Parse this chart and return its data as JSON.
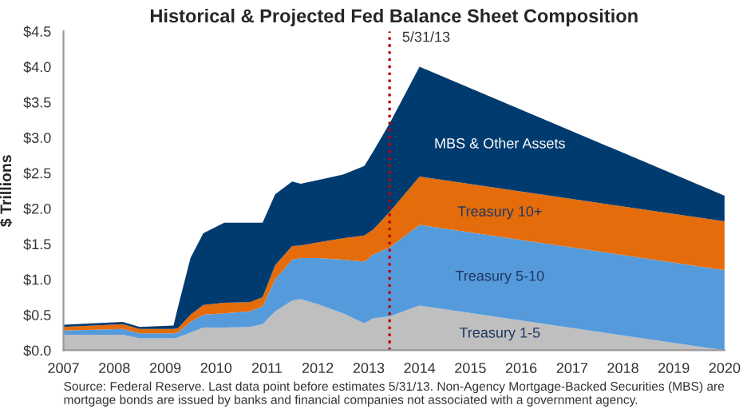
{
  "chart_data": {
    "type": "area",
    "stacked": true,
    "title": "Historical & Projected Fed Balance Sheet Composition",
    "ylabel": "$ Trillions",
    "x": [
      "2007-01",
      "2008-03",
      "2008-07",
      "2009-03",
      "2009-04",
      "2009-07",
      "2009-10",
      "2010-03",
      "2010-09",
      "2010-12",
      "2011-03",
      "2011-07",
      "2011-09",
      "2012-01",
      "2012-07",
      "2012-12",
      "2013-02",
      "2013-05-31",
      "2014-01",
      "2020-01"
    ],
    "series": [
      {
        "name": "Treasury 1-5",
        "color": "#bfbfbf",
        "values": [
          0.22,
          0.22,
          0.17,
          0.17,
          0.18,
          0.25,
          0.32,
          0.32,
          0.33,
          0.37,
          0.55,
          0.7,
          0.72,
          0.65,
          0.52,
          0.38,
          0.45,
          0.48,
          0.63,
          0.0
        ]
      },
      {
        "name": "Treasury 5-10",
        "color": "#559bdc",
        "values": [
          0.06,
          0.08,
          0.07,
          0.07,
          0.07,
          0.15,
          0.18,
          0.2,
          0.22,
          0.25,
          0.45,
          0.58,
          0.58,
          0.65,
          0.76,
          0.87,
          0.9,
          0.97,
          1.14,
          1.13
        ]
      },
      {
        "name": "Treasury 10+",
        "color": "#e46c0a",
        "values": [
          0.05,
          0.07,
          0.06,
          0.06,
          0.06,
          0.1,
          0.14,
          0.15,
          0.13,
          0.13,
          0.2,
          0.19,
          0.18,
          0.22,
          0.3,
          0.37,
          0.35,
          0.5,
          0.68,
          0.69
        ]
      },
      {
        "name": "MBS & Other Assets",
        "color": "#003b6f",
        "values": [
          0.03,
          0.03,
          0.03,
          0.05,
          0.29,
          0.8,
          1.01,
          1.13,
          1.12,
          1.05,
          1.0,
          0.91,
          0.87,
          0.88,
          0.9,
          0.98,
          1.1,
          1.25,
          1.55,
          0.36
        ]
      }
    ],
    "xlim": [
      "2007",
      "2020"
    ],
    "xticks": [
      "2007",
      "2008",
      "2009",
      "2010",
      "2011",
      "2012",
      "2013",
      "2014",
      "2015",
      "2016",
      "2017",
      "2018",
      "2019",
      "2020"
    ],
    "ylim": [
      0,
      4.5
    ],
    "yticks": [
      {
        "value": 0,
        "label": "$0.0"
      },
      {
        "value": 0.5,
        "label": "$0.5"
      },
      {
        "value": 1.0,
        "label": "$1.0"
      },
      {
        "value": 1.5,
        "label": "$1.5"
      },
      {
        "value": 2.0,
        "label": "$2.0"
      },
      {
        "value": 2.5,
        "label": "$2.5"
      },
      {
        "value": 3.0,
        "label": "$3.0"
      },
      {
        "value": 3.5,
        "label": "$3.5"
      },
      {
        "value": 4.0,
        "label": "$4.0"
      },
      {
        "value": 4.5,
        "label": "$4.5"
      }
    ],
    "ref_lines": [
      {
        "axis": "x",
        "value": "2013-05-31",
        "label": "5/31/13",
        "color": "#c00000",
        "line_style": "dotted"
      }
    ],
    "grid": false,
    "legend": false,
    "annotations": [
      "Source: Federal Reserve. Last data point before estimates 5/31/13. Non-Agency Mortgage-Backed Securities (MBS) are mortgage bonds are issued by banks and financial companies not associated with a government agency."
    ]
  }
}
